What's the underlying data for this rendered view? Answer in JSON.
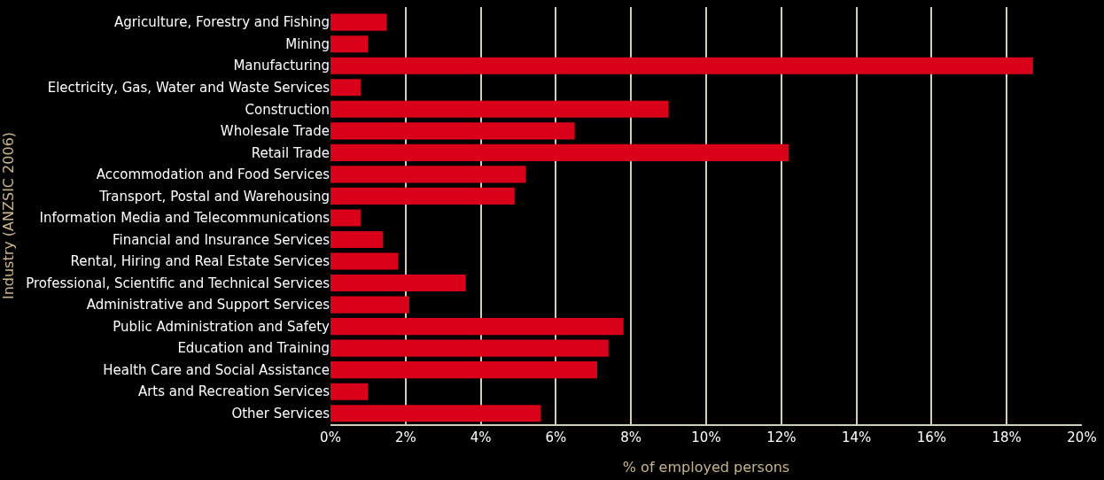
{
  "chart_data": {
    "type": "bar",
    "orientation": "horizontal",
    "xlabel": "% of employed persons",
    "ylabel": "Industry (ANZSIC 2006)",
    "categories": [
      "Agriculture, Forestry and Fishing",
      "Mining",
      "Manufacturing",
      "Electricity, Gas, Water and Waste Services",
      "Construction",
      "Wholesale Trade",
      "Retail Trade",
      "Accommodation and Food Services",
      "Transport, Postal and Warehousing",
      "Information Media and Telecommunications",
      "Financial and Insurance Services",
      "Rental, Hiring and Real Estate Services",
      "Professional, Scientific and Technical Services",
      "Administrative and Support Services",
      "Public Administration and Safety",
      "Education and Training",
      "Health Care and Social Assistance",
      "Arts and Recreation Services",
      "Other Services"
    ],
    "values": [
      1.5,
      1.0,
      18.7,
      0.8,
      9.0,
      6.5,
      12.2,
      5.2,
      4.9,
      0.8,
      1.4,
      1.8,
      3.6,
      2.1,
      7.8,
      7.4,
      7.1,
      1.0,
      5.6
    ],
    "color": "#d9001a",
    "xlim": [
      0,
      20
    ],
    "xticks": [
      {
        "value": 0,
        "label": "0%"
      },
      {
        "value": 2,
        "label": "2%"
      },
      {
        "value": 4,
        "label": "4%"
      },
      {
        "value": 6,
        "label": "6%"
      },
      {
        "value": 8,
        "label": "8%"
      },
      {
        "value": 10,
        "label": "10%"
      },
      {
        "value": 12,
        "label": "12%"
      },
      {
        "value": 14,
        "label": "14%"
      },
      {
        "value": 16,
        "label": "16%"
      },
      {
        "value": 18,
        "label": "18%"
      },
      {
        "value": 20,
        "label": "20%"
      }
    ],
    "grid": "x"
  }
}
